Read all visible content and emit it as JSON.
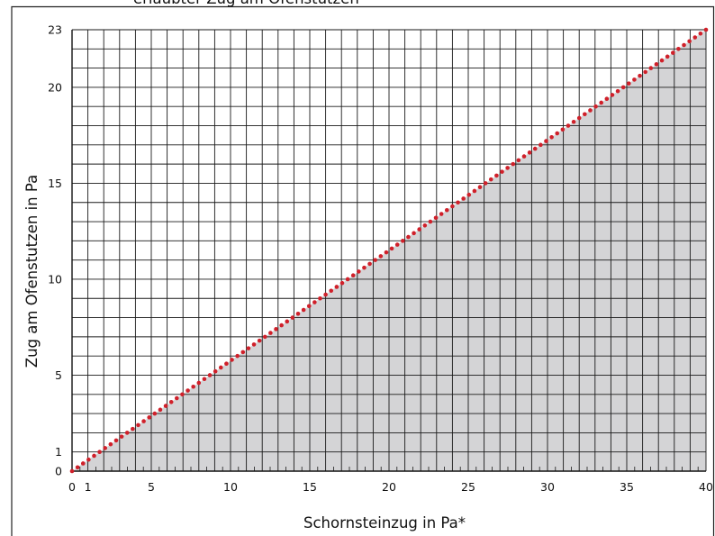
{
  "chart_data": {
    "type": "area",
    "title": "",
    "xlabel": "Schornsteinzug in Pa*",
    "ylabel": "Zug am Ofenstutzen  in Pa",
    "xlim": [
      0,
      40
    ],
    "ylim": [
      0,
      23
    ],
    "x_ticks": [
      0,
      1,
      5,
      10,
      15,
      20,
      25,
      30,
      35,
      40
    ],
    "y_ticks": [
      0,
      1,
      5,
      10,
      15,
      20,
      23
    ],
    "x_minor_step": 0.5,
    "x_major_grid_step": 1,
    "y_major_grid_step": 1,
    "grid": true,
    "series": [
      {
        "type": "area",
        "x": [
          0,
          40
        ],
        "y": [
          0,
          23
        ],
        "color": "#d4d4d6"
      },
      {
        "type": "dotted-line",
        "x": [
          0,
          40
        ],
        "y": [
          0,
          23
        ],
        "color": "#d0202a"
      }
    ]
  },
  "page_caption_partial": "erlaubter Zug am Ofenstutzen"
}
